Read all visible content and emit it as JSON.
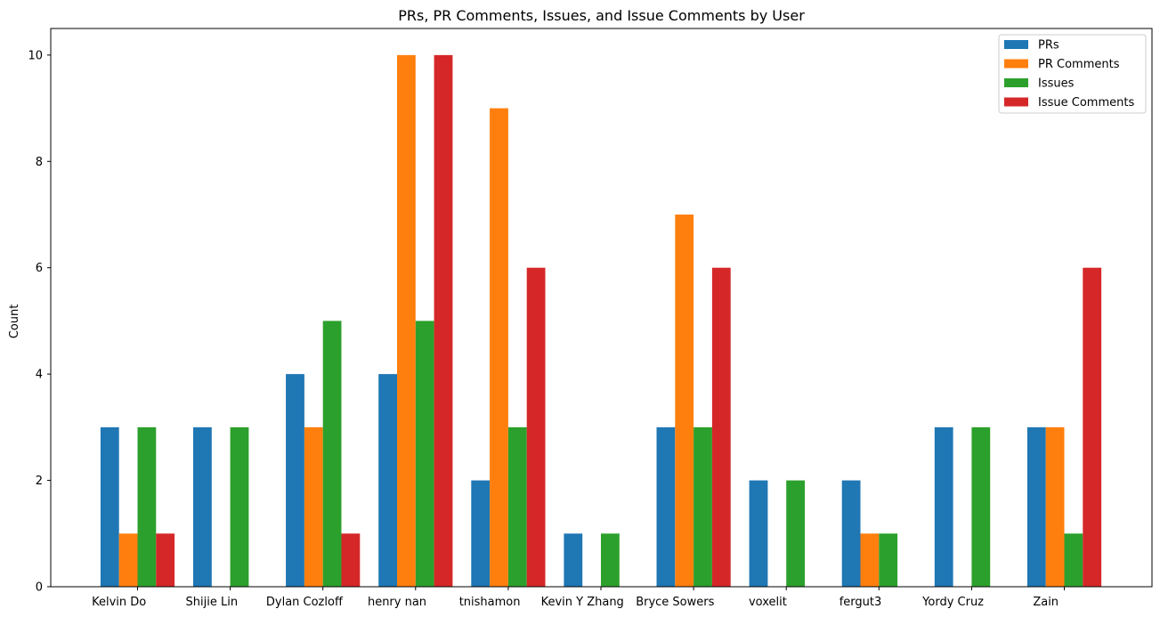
{
  "chart_data": {
    "type": "bar",
    "title": "PRs, PR Comments, Issues, and Issue Comments by User",
    "xlabel": "",
    "ylabel": "Count",
    "ylim": [
      0,
      10.5
    ],
    "yticks": [
      0,
      2,
      4,
      6,
      8,
      10
    ],
    "grid": false,
    "legend_position": "top-right",
    "categories": [
      "Kelvin Do",
      "Shijie Lin",
      "Dylan Cozloff",
      "henry nan",
      "tnishamon",
      "Kevin Y Zhang",
      "Bryce Sowers",
      "voxelit",
      "fergut3",
      "Yordy Cruz",
      "Zain"
    ],
    "series": [
      {
        "name": "PRs",
        "color": "#1f77b4",
        "values": [
          3,
          3,
          4,
          4,
          2,
          1,
          3,
          2,
          2,
          3,
          3
        ]
      },
      {
        "name": "PR Comments",
        "color": "#ff7f0e",
        "values": [
          1,
          0,
          3,
          10,
          9,
          0,
          7,
          0,
          1,
          0,
          3
        ]
      },
      {
        "name": "Issues",
        "color": "#2ca02c",
        "values": [
          3,
          3,
          5,
          5,
          3,
          1,
          3,
          2,
          1,
          3,
          1
        ]
      },
      {
        "name": "Issue Comments",
        "color": "#d62728",
        "values": [
          1,
          0,
          1,
          10,
          6,
          0,
          6,
          0,
          0,
          0,
          6
        ]
      }
    ]
  }
}
